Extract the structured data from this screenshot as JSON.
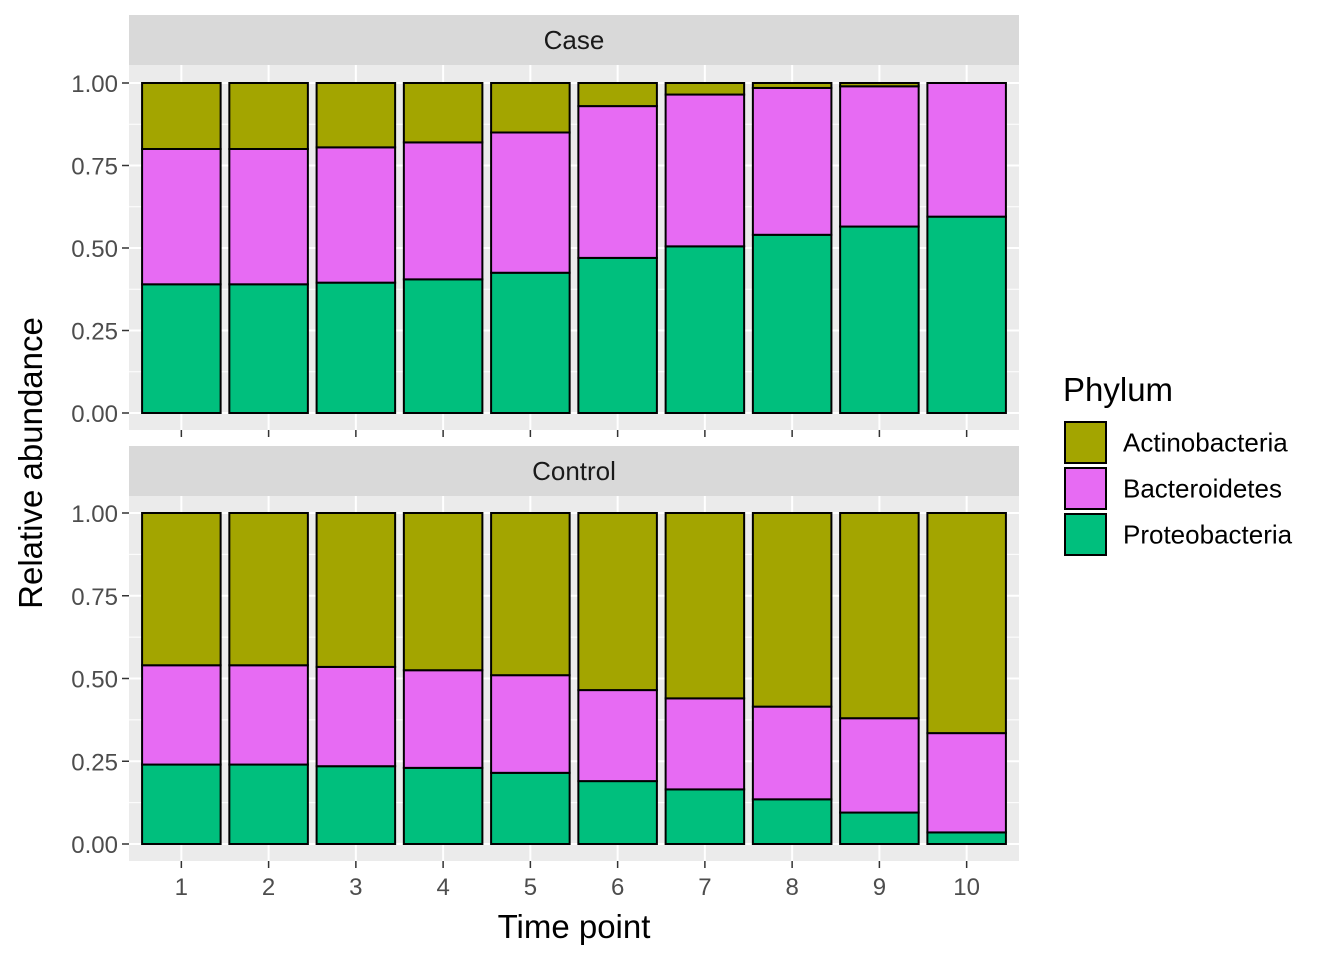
{
  "chart_data": {
    "type": "bar",
    "stacked": true,
    "xlabel": "Time point",
    "ylabel": "Relative abundance",
    "categories": [
      "1",
      "2",
      "3",
      "4",
      "5",
      "6",
      "7",
      "8",
      "9",
      "10"
    ],
    "ylim": [
      0,
      1
    ],
    "y_ticks": [
      "0.00",
      "0.25",
      "0.50",
      "0.75",
      "1.00"
    ],
    "grid": true,
    "legend": {
      "title": "Phylum",
      "position": "right",
      "entries": [
        "Actinobacteria",
        "Bacteroidetes",
        "Proteobacteria"
      ]
    },
    "colors": {
      "Actinobacteria": "#A3A500",
      "Bacteroidetes": "#E76BF3",
      "Proteobacteria": "#00BF7D"
    },
    "panels": [
      {
        "name": "Case",
        "series": [
          {
            "name": "Proteobacteria",
            "values": [
              0.39,
              0.39,
              0.395,
              0.405,
              0.425,
              0.47,
              0.505,
              0.54,
              0.565,
              0.595
            ]
          },
          {
            "name": "Bacteroidetes",
            "values": [
              0.41,
              0.41,
              0.41,
              0.415,
              0.425,
              0.46,
              0.46,
              0.445,
              0.425,
              0.405
            ]
          },
          {
            "name": "Actinobacteria",
            "values": [
              0.2,
              0.2,
              0.195,
              0.18,
              0.15,
              0.07,
              0.035,
              0.015,
              0.01,
              0.0
            ]
          }
        ]
      },
      {
        "name": "Control",
        "series": [
          {
            "name": "Proteobacteria",
            "values": [
              0.24,
              0.24,
              0.235,
              0.23,
              0.215,
              0.19,
              0.165,
              0.135,
              0.095,
              0.035
            ]
          },
          {
            "name": "Bacteroidetes",
            "values": [
              0.3,
              0.3,
              0.3,
              0.295,
              0.295,
              0.275,
              0.275,
              0.28,
              0.285,
              0.3
            ]
          },
          {
            "name": "Actinobacteria",
            "values": [
              0.46,
              0.46,
              0.465,
              0.475,
              0.49,
              0.535,
              0.56,
              0.585,
              0.62,
              0.665
            ]
          }
        ]
      }
    ]
  }
}
